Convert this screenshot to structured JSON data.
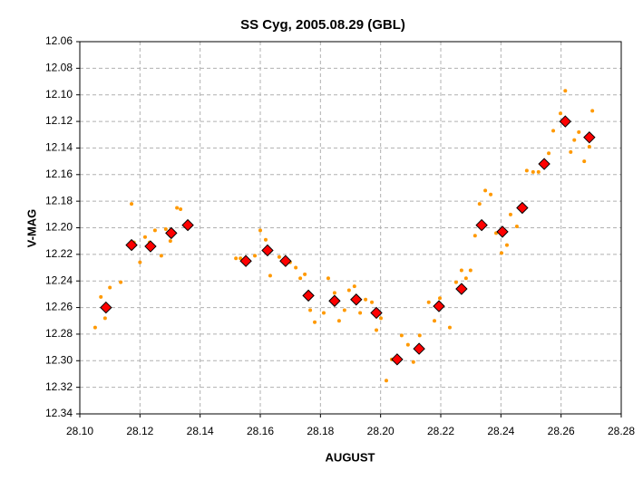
{
  "chart_data": {
    "type": "scatter",
    "title": "SS Cyg, 2005.08.29 (GBL)",
    "x_label": "AUGUST",
    "y_label": "V-MAG",
    "xlim": [
      28.1,
      28.28
    ],
    "xticks": [
      {
        "value": 28.1,
        "label": "28.10"
      },
      {
        "value": 28.12,
        "label": "28.12"
      },
      {
        "value": 28.14,
        "label": "28.14"
      },
      {
        "value": 28.16,
        "label": "28.16"
      },
      {
        "value": 28.18,
        "label": "28.18"
      },
      {
        "value": 28.2,
        "label": "28.20"
      },
      {
        "value": 28.22,
        "label": "28.22"
      },
      {
        "value": 28.24,
        "label": "28.24"
      },
      {
        "value": 28.26,
        "label": "28.26"
      },
      {
        "value": 28.28,
        "label": "28.28"
      }
    ],
    "ylim": [
      12.06,
      12.34
    ],
    "y_inverted": true,
    "yticks": [
      12.06,
      12.08,
      {
        "value": 12.1,
        "label": "12.10"
      },
      12.12,
      12.14,
      12.16,
      12.18,
      {
        "value": 12.2,
        "label": "12.20"
      },
      12.22,
      12.24,
      12.26,
      12.28,
      {
        "value": 12.3,
        "label": "12.30"
      },
      12.32,
      12.34
    ],
    "grid": true,
    "series": [
      {
        "color": "#ff9900",
        "marker": "dot",
        "x": [
          28.1051,
          28.107,
          28.1084,
          28.11,
          28.1136,
          28.1172,
          28.118,
          28.12,
          28.1217,
          28.1232,
          28.125,
          28.1271,
          28.1286,
          28.1301,
          28.1323,
          28.1335,
          28.135,
          28.1519,
          28.1534,
          28.1582,
          28.16,
          28.1618,
          28.1633,
          28.1663,
          28.1699,
          28.1718,
          28.1733,
          28.1748,
          28.1766,
          28.1781,
          28.1811,
          28.1826,
          28.1847,
          28.1862,
          28.188,
          28.1895,
          28.1913,
          28.1932,
          28.195,
          28.1971,
          28.1986,
          28.2001,
          28.2019,
          28.2037,
          28.207,
          28.2091,
          28.2109,
          28.213,
          28.216,
          28.2179,
          28.2197,
          28.223,
          28.2251,
          28.2269,
          28.2284,
          28.2299,
          28.2314,
          28.2329,
          28.2348,
          28.2366,
          28.2384,
          28.2402,
          28.242,
          28.2432,
          28.2453,
          28.2486,
          28.2507,
          28.2525,
          28.2559,
          28.2574,
          28.2598,
          28.2614,
          28.2632,
          28.2644,
          28.2659,
          28.2677,
          28.2694,
          28.2704
        ],
        "values": [
          12.275,
          12.252,
          12.268,
          12.245,
          12.241,
          12.182,
          12.211,
          12.226,
          12.207,
          12.211,
          12.202,
          12.221,
          12.201,
          12.21,
          12.185,
          12.186,
          12.198,
          12.223,
          12.223,
          12.221,
          12.202,
          12.209,
          12.236,
          12.222,
          12.226,
          12.23,
          12.238,
          12.235,
          12.262,
          12.271,
          12.264,
          12.238,
          12.249,
          12.27,
          12.262,
          12.247,
          12.244,
          12.264,
          12.254,
          12.256,
          12.277,
          12.268,
          12.315,
          12.299,
          12.281,
          12.288,
          12.301,
          12.281,
          12.256,
          12.27,
          12.253,
          12.275,
          12.241,
          12.232,
          12.238,
          12.232,
          12.206,
          12.182,
          12.172,
          12.175,
          12.204,
          12.219,
          12.213,
          12.19,
          12.199,
          12.157,
          12.158,
          12.158,
          12.144,
          12.127,
          12.114,
          12.097,
          12.143,
          12.134,
          12.128,
          12.15,
          12.139,
          12.112
        ]
      },
      {
        "color": "#ff0000",
        "marker": "diamond",
        "x": [
          28.1087,
          28.1172,
          28.1235,
          28.1304,
          28.1359,
          28.1552,
          28.1624,
          28.1684,
          28.176,
          28.1847,
          28.1919,
          28.1986,
          28.2055,
          28.2128,
          28.2194,
          28.2269,
          28.2336,
          28.2405,
          28.2471,
          28.2544,
          28.2614,
          28.2694
        ],
        "values": [
          12.26,
          12.213,
          12.214,
          12.204,
          12.198,
          12.225,
          12.217,
          12.225,
          12.251,
          12.255,
          12.254,
          12.264,
          12.299,
          12.291,
          12.259,
          12.246,
          12.198,
          12.203,
          12.185,
          12.152,
          12.12,
          12.132
        ]
      }
    ]
  }
}
